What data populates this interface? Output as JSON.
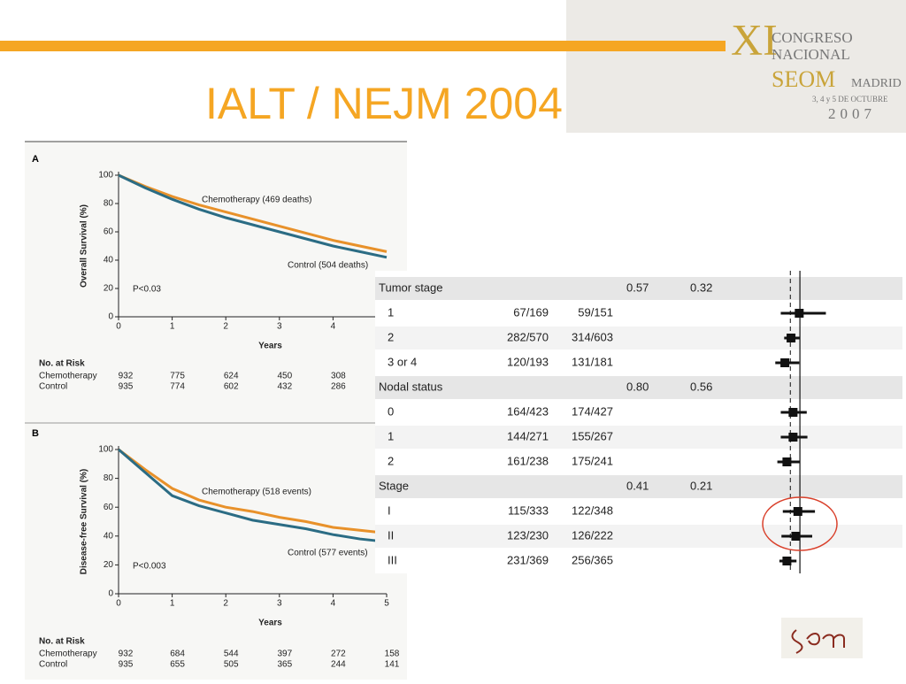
{
  "header": {
    "title": "IALT / NEJM 2004",
    "congress": [
      "XI",
      "CONGRESO",
      "NACIONAL",
      "SEOM",
      "MADRID",
      "3, 4 y 5 DE OCTUBRE",
      "2007"
    ]
  },
  "chart_data": [
    {
      "type": "line",
      "label": "A",
      "xlabel": "Years",
      "ylabel": "Overall Survival (%)",
      "x": [
        0,
        0.5,
        1,
        1.5,
        2,
        2.5,
        3,
        3.5,
        4,
        4.5,
        5
      ],
      "xlim": [
        0,
        5
      ],
      "xticks": [
        0,
        1,
        2,
        3,
        4
      ],
      "ylim": [
        0,
        100
      ],
      "yticks": [
        0,
        20,
        40,
        60,
        80,
        100
      ],
      "series": [
        {
          "name": "Chemotherapy",
          "color": "#e8912a",
          "values": [
            100,
            92,
            85,
            79,
            74,
            69,
            64,
            59,
            54,
            50,
            46
          ]
        },
        {
          "name": "Control",
          "color": "#2b6c84",
          "values": [
            100,
            91,
            83,
            76,
            70,
            65,
            60,
            55,
            50,
            46,
            42
          ]
        }
      ],
      "annotations": [
        "Chemotherapy (469 deaths)",
        "Control (504 deaths)",
        "P<0.03"
      ],
      "risk_table": {
        "title": "No. at Risk",
        "rows": [
          {
            "name": "Chemotherapy",
            "values": [
              "932",
              "775",
              "624",
              "450",
              "308"
            ]
          },
          {
            "name": "Control",
            "values": [
              "935",
              "774",
              "602",
              "432",
              "286"
            ]
          }
        ]
      }
    },
    {
      "type": "line",
      "label": "B",
      "xlabel": "Years",
      "ylabel": "Disease-free Survival (%)",
      "x": [
        0,
        0.5,
        1,
        1.5,
        2,
        2.5,
        3,
        3.5,
        4,
        4.5,
        5
      ],
      "xlim": [
        0,
        5
      ],
      "xticks": [
        0,
        1,
        2,
        3,
        4,
        5
      ],
      "ylim": [
        0,
        100
      ],
      "yticks": [
        0,
        20,
        40,
        60,
        80,
        100
      ],
      "series": [
        {
          "name": "Chemotherapy",
          "color": "#e8912a",
          "values": [
            100,
            86,
            73,
            65,
            60,
            57,
            53,
            50,
            46,
            44,
            42
          ]
        },
        {
          "name": "Control",
          "color": "#2b6c84",
          "values": [
            100,
            84,
            68,
            61,
            56,
            51,
            48,
            45,
            41,
            38,
            36
          ]
        }
      ],
      "annotations": [
        "Chemotherapy (518 events)",
        "Control (577 events)",
        "P<0.003"
      ],
      "risk_table": {
        "title": "No. at Risk",
        "rows": [
          {
            "name": "Chemotherapy",
            "values": [
              "932",
              "684",
              "544",
              "397",
              "272",
              "158"
            ]
          },
          {
            "name": "Control",
            "values": [
              "935",
              "655",
              "505",
              "365",
              "244",
              "141"
            ]
          }
        ]
      }
    }
  ],
  "forest": {
    "xlim": [
      0.3,
      2.5
    ],
    "reference": 1,
    "overall": 0.86,
    "rows": [
      {
        "label": "Tumor stage",
        "group": true,
        "p1": "0.57",
        "p2": "0.32"
      },
      {
        "label": "1",
        "chemo": "67/169",
        "control": "59/151",
        "hr": 0.99,
        "lo": 0.72,
        "hi": 1.38
      },
      {
        "label": "2",
        "chemo": "282/570",
        "control": "314/603",
        "hr": 0.87,
        "lo": 0.77,
        "hi": 1.0
      },
      {
        "label": "3 or 4",
        "chemo": "120/193",
        "control": "131/181",
        "hr": 0.78,
        "lo": 0.64,
        "hi": 0.99
      },
      {
        "label": "Nodal status",
        "group": true,
        "p1": "0.80",
        "p2": "0.56"
      },
      {
        "label": "0",
        "chemo": "164/423",
        "control": "174/427",
        "hr": 0.9,
        "lo": 0.72,
        "hi": 1.1
      },
      {
        "label": "1",
        "chemo": "144/271",
        "control": "155/267",
        "hr": 0.9,
        "lo": 0.72,
        "hi": 1.11
      },
      {
        "label": "2",
        "chemo": "161/238",
        "control": "175/241",
        "hr": 0.81,
        "lo": 0.67,
        "hi": 1.0
      },
      {
        "label": "Stage",
        "group": true,
        "p1": "0.41",
        "p2": "0.21"
      },
      {
        "label": "I",
        "chemo": "115/333",
        "control": "122/348",
        "hr": 0.97,
        "lo": 0.75,
        "hi": 1.22
      },
      {
        "label": "II",
        "chemo": "123/230",
        "control": "126/222",
        "hr": 0.94,
        "lo": 0.73,
        "hi": 1.18
      },
      {
        "label": "III",
        "chemo": "231/369",
        "control": "256/365",
        "hr": 0.81,
        "lo": 0.7,
        "hi": 0.95
      }
    ]
  }
}
